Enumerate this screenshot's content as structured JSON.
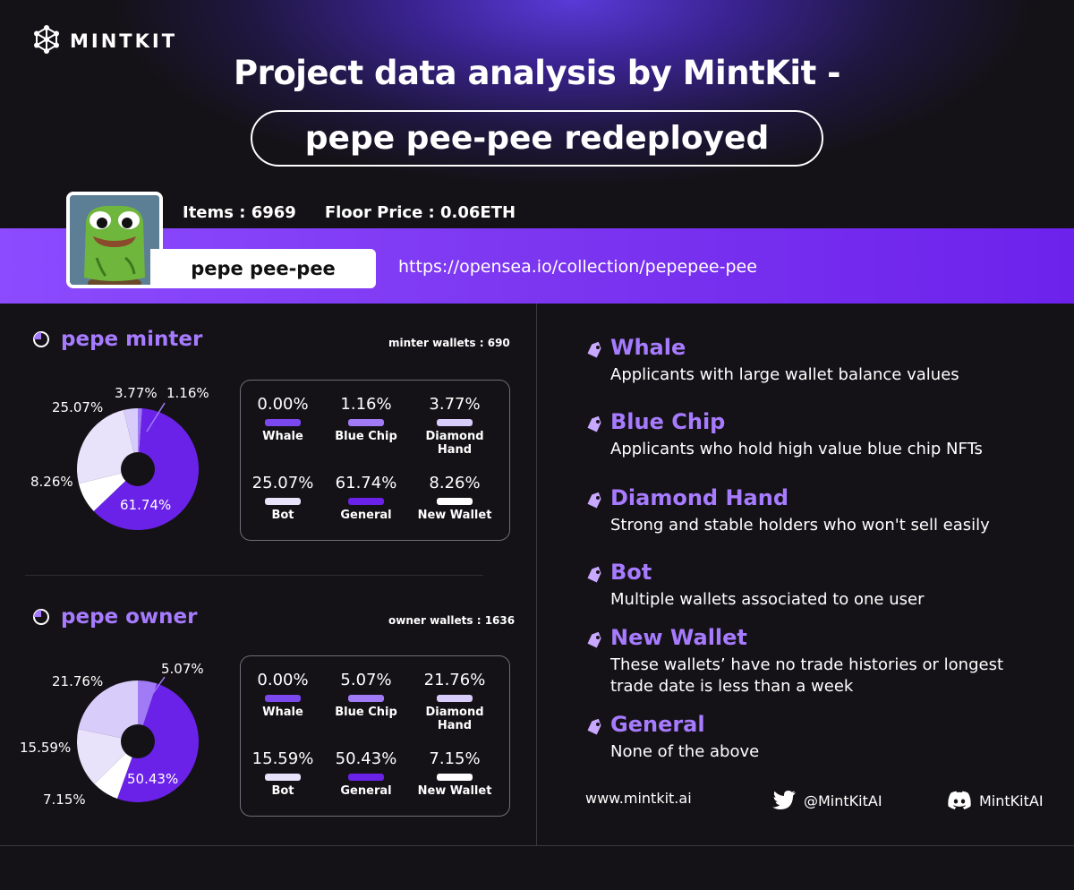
{
  "brand": {
    "name": "MINTKIT",
    "icon": "cube-network-icon"
  },
  "header": {
    "title": "Project data analysis by MintKit -",
    "subtitle": "pepe pee-pee redeployed"
  },
  "collection": {
    "items_text": "Items : 6969",
    "floor_text": "Floor Price : 0.06ETH",
    "name": "pepe pee-pee",
    "url": "https://opensea.io/collection/pepepee-pee",
    "avatar_icon": "pepe-avatar-icon"
  },
  "colors": {
    "whale": "#7b48f0",
    "blue_chip": "#a07bf5",
    "diamond_hand": "#d8ccfb",
    "bot": "#e8e2fb",
    "general": "#6a22e8",
    "new_wallet": "#ffffff",
    "accent": "#a77bff"
  },
  "minter": {
    "title": "pepe minter",
    "wallets_text": "minter wallets : 690",
    "cells": [
      {
        "value": "0.00%",
        "label": "Whale"
      },
      {
        "value": "1.16%",
        "label": "Blue Chip"
      },
      {
        "value": "3.77%",
        "label": "Diamond Hand"
      },
      {
        "value": "25.07%",
        "label": "Bot"
      },
      {
        "value": "61.74%",
        "label": "General"
      },
      {
        "value": "8.26%",
        "label": "New Wallet"
      }
    ],
    "slice_labels": {
      "whale": "",
      "blue_chip": "1.16%",
      "diamond_hand": "3.77%",
      "bot": "25.07%",
      "general": "61.74%",
      "new_wallet": "8.26%"
    }
  },
  "owner": {
    "title": "pepe owner",
    "wallets_text": "owner wallets : 1636",
    "cells": [
      {
        "value": "0.00%",
        "label": "Whale"
      },
      {
        "value": "5.07%",
        "label": "Blue Chip"
      },
      {
        "value": "21.76%",
        "label": "Diamond Hand"
      },
      {
        "value": "15.59%",
        "label": "Bot"
      },
      {
        "value": "50.43%",
        "label": "General"
      },
      {
        "value": "7.15%",
        "label": "New Wallet"
      }
    ],
    "slice_labels": {
      "whale": "",
      "blue_chip": "5.07%",
      "diamond_hand": "21.76%",
      "bot": "15.59%",
      "general": "50.43%",
      "new_wallet": "7.15%"
    }
  },
  "chart_data": [
    {
      "type": "pie",
      "title": "pepe minter",
      "categories": [
        "Whale",
        "Blue Chip",
        "Diamond Hand",
        "Bot",
        "General",
        "New Wallet"
      ],
      "values": [
        0.0,
        1.16,
        3.77,
        25.07,
        61.74,
        8.26
      ]
    },
    {
      "type": "pie",
      "title": "pepe owner",
      "categories": [
        "Whale",
        "Blue Chip",
        "Diamond Hand",
        "Bot",
        "General",
        "New Wallet"
      ],
      "values": [
        0.0,
        5.07,
        21.76,
        15.59,
        50.43,
        7.15
      ]
    }
  ],
  "legend": [
    {
      "title": "Whale",
      "desc": "Applicants with large wallet balance values"
    },
    {
      "title": "Blue Chip",
      "desc": "Applicants who hold high value blue chip NFTs"
    },
    {
      "title": "Diamond Hand",
      "desc": "Strong and stable holders who won't sell easily"
    },
    {
      "title": "Bot",
      "desc": "Multiple wallets associated to one user"
    },
    {
      "title": "New Wallet",
      "desc": "These wallets’ have no trade histories or longest trade date is less than a week"
    },
    {
      "title": "General",
      "desc": "None of the above"
    }
  ],
  "footer": {
    "website": "www.mintkit.ai",
    "twitter": "@MintKitAI",
    "discord": "MintKitAI",
    "twitter_icon": "twitter-bird-icon",
    "discord_icon": "discord-icon"
  }
}
